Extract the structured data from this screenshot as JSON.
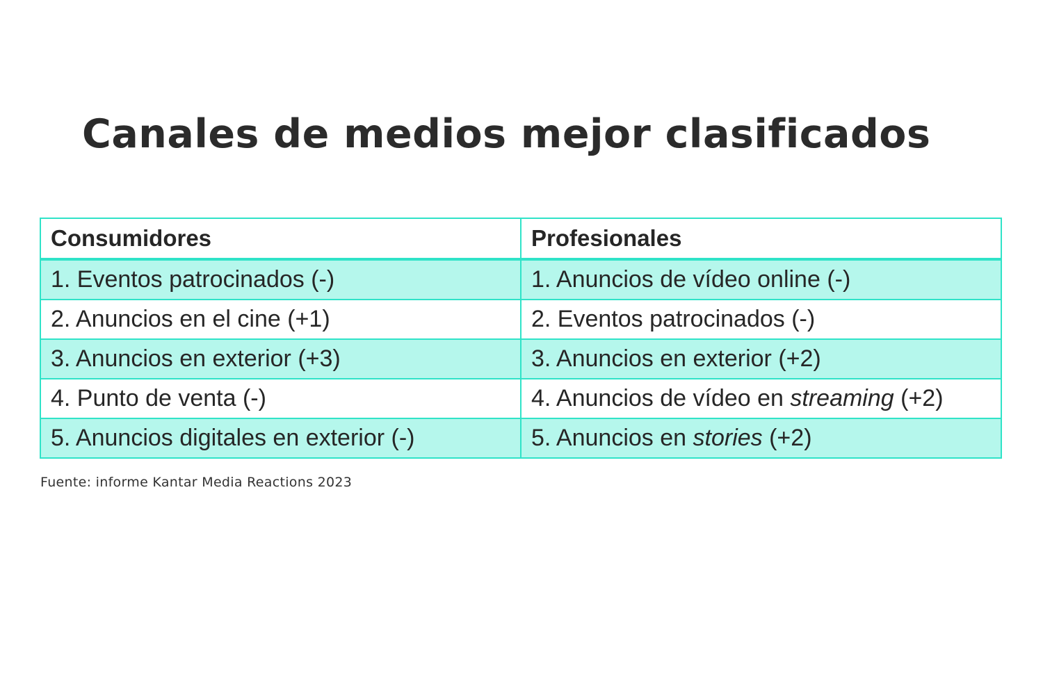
{
  "title": "Canales de medios mejor clasificados",
  "table": {
    "headers": [
      "Consumidores",
      "Profesionales"
    ],
    "rows": [
      {
        "consumidores": "1. Eventos patrocinados (-)",
        "profesionales": {
          "pre": "1. Anuncios de vídeo online (-)",
          "italic": "",
          "post": ""
        }
      },
      {
        "consumidores": "2. Anuncios en el cine (+1)",
        "profesionales": {
          "pre": "2. Eventos patrocinados (-)",
          "italic": "",
          "post": ""
        }
      },
      {
        "consumidores": "3. Anuncios en exterior (+3)",
        "profesionales": {
          "pre": "3. Anuncios en exterior (+2)",
          "italic": "",
          "post": ""
        }
      },
      {
        "consumidores": "4. Punto de venta (-)",
        "profesionales": {
          "pre": "4. Anuncios de vídeo en ",
          "italic": "streaming",
          "post": " (+2)"
        }
      },
      {
        "consumidores": "5. Anuncios digitales en exterior (-)",
        "profesionales": {
          "pre": "5. Anuncios en ",
          "italic": "stories",
          "post": " (+2)"
        }
      }
    ]
  },
  "source": "Fuente: informe Kantar Media Reactions 2023",
  "colors": {
    "border": "#2fe3c8",
    "row_fill": "#b5f7ec",
    "text": "#262626"
  }
}
